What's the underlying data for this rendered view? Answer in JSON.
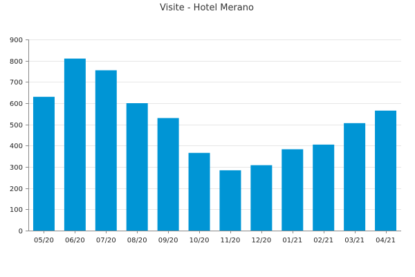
{
  "chart_data": {
    "type": "bar",
    "title": "Visite - Hotel Merano",
    "xlabel": "",
    "ylabel": "",
    "categories": [
      "05/20",
      "06/20",
      "07/20",
      "08/20",
      "09/20",
      "10/20",
      "11/20",
      "12/20",
      "01/21",
      "02/21",
      "03/21",
      "04/21"
    ],
    "values": [
      630,
      810,
      755,
      600,
      530,
      366,
      284,
      308,
      383,
      405,
      506,
      565
    ],
    "ylim": [
      0,
      900
    ],
    "yticks": [
      0,
      100,
      200,
      300,
      400,
      500,
      600,
      700,
      800,
      900
    ],
    "grid": true,
    "legend": "none",
    "bar_color": "#0095d5",
    "grid_color": "#e6e6e6",
    "axis_color": "#888888"
  }
}
